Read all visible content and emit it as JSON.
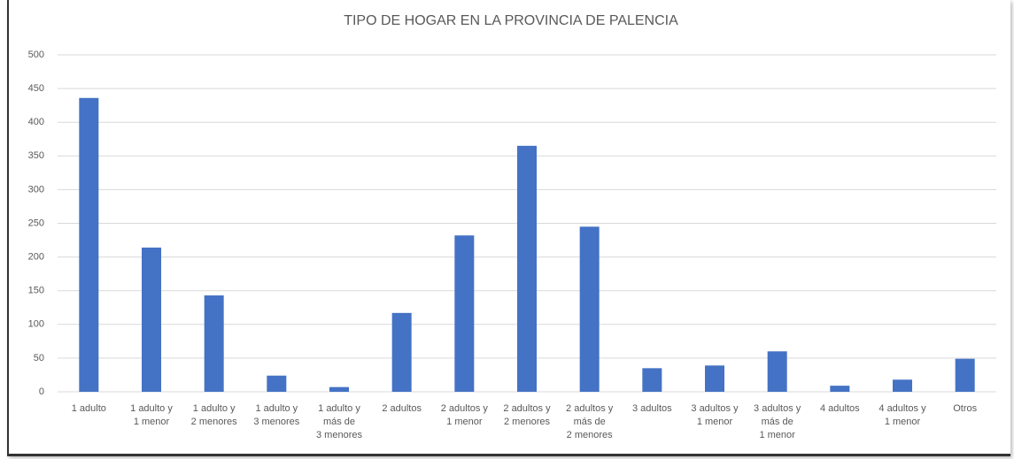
{
  "chart_data": {
    "type": "bar",
    "title": "TIPO DE HOGAR EN LA PROVINCIA DE PALENCIA",
    "categories": [
      "1 adulto",
      "1 adulto y\n1 menor",
      "1 adulto y\n2 menores",
      "1 adulto y\n3 menores",
      "1 adulto y\nmás de\n3 menores",
      "2 adultos",
      "2 adultos y\n1 menor",
      "2 adultos y\n2 menores",
      "2 adultos y\nmás de\n2 menores",
      "3 adultos",
      "3 adultos y\n1 menor",
      "3 adultos y\nmás de\n1 menor",
      "4 adultos",
      "4 adultos y\n1 menor",
      "Otros"
    ],
    "values": [
      436,
      214,
      143,
      24,
      7,
      117,
      232,
      365,
      245,
      35,
      39,
      60,
      9,
      18,
      49
    ],
    "color": "#4472c4",
    "ylim": [
      0,
      500
    ],
    "yticks": [
      0,
      50,
      100,
      150,
      200,
      250,
      300,
      350,
      400,
      450,
      500
    ],
    "grid": true
  }
}
